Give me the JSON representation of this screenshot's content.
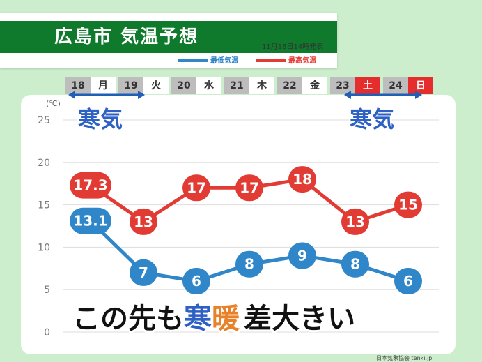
{
  "header": {
    "title": "広島市 気温予想",
    "issued": "11月18日14時発表"
  },
  "legend": {
    "min_label": "最低気温",
    "max_label": "最高気温",
    "min_color": "#2f86c8",
    "max_color": "#e23b34"
  },
  "days": [
    {
      "date": "18",
      "dow": "月",
      "type": "weekday"
    },
    {
      "date": "19",
      "dow": "火",
      "type": "weekday"
    },
    {
      "date": "20",
      "dow": "水",
      "type": "weekday"
    },
    {
      "date": "21",
      "dow": "木",
      "type": "weekday"
    },
    {
      "date": "22",
      "dow": "金",
      "type": "weekday"
    },
    {
      "date": "23",
      "dow": "土",
      "type": "sat"
    },
    {
      "date": "24",
      "dow": "日",
      "type": "sun"
    }
  ],
  "annotations": {
    "cold_left": "寒気",
    "cold_right": "寒気",
    "headline_pre": "この先も",
    "headline_cold": "寒",
    "headline_warm": "暖",
    "headline_post": "差大きい"
  },
  "footer": {
    "credit": "日本気象協会 tenki.jp"
  },
  "chart_data": {
    "type": "line",
    "ylabel": "(℃)",
    "ylim": [
      0,
      25
    ],
    "yticks": [
      0,
      5,
      10,
      15,
      20,
      25
    ],
    "grid": true,
    "categories": [
      "18",
      "19",
      "20",
      "21",
      "22",
      "23",
      "24"
    ],
    "series": [
      {
        "name": "最高気温",
        "color": "#e23b34",
        "values": [
          17.3,
          13,
          17,
          17,
          18,
          13,
          15
        ],
        "labels": [
          "17.3",
          "13",
          "17",
          "17",
          "18",
          "13",
          "15"
        ]
      },
      {
        "name": "最低気温",
        "color": "#2f86c8",
        "values": [
          13.1,
          7,
          6,
          8,
          9,
          8,
          6
        ],
        "labels": [
          "13.1",
          "7",
          "6",
          "8",
          "9",
          "8",
          "6"
        ]
      }
    ]
  }
}
